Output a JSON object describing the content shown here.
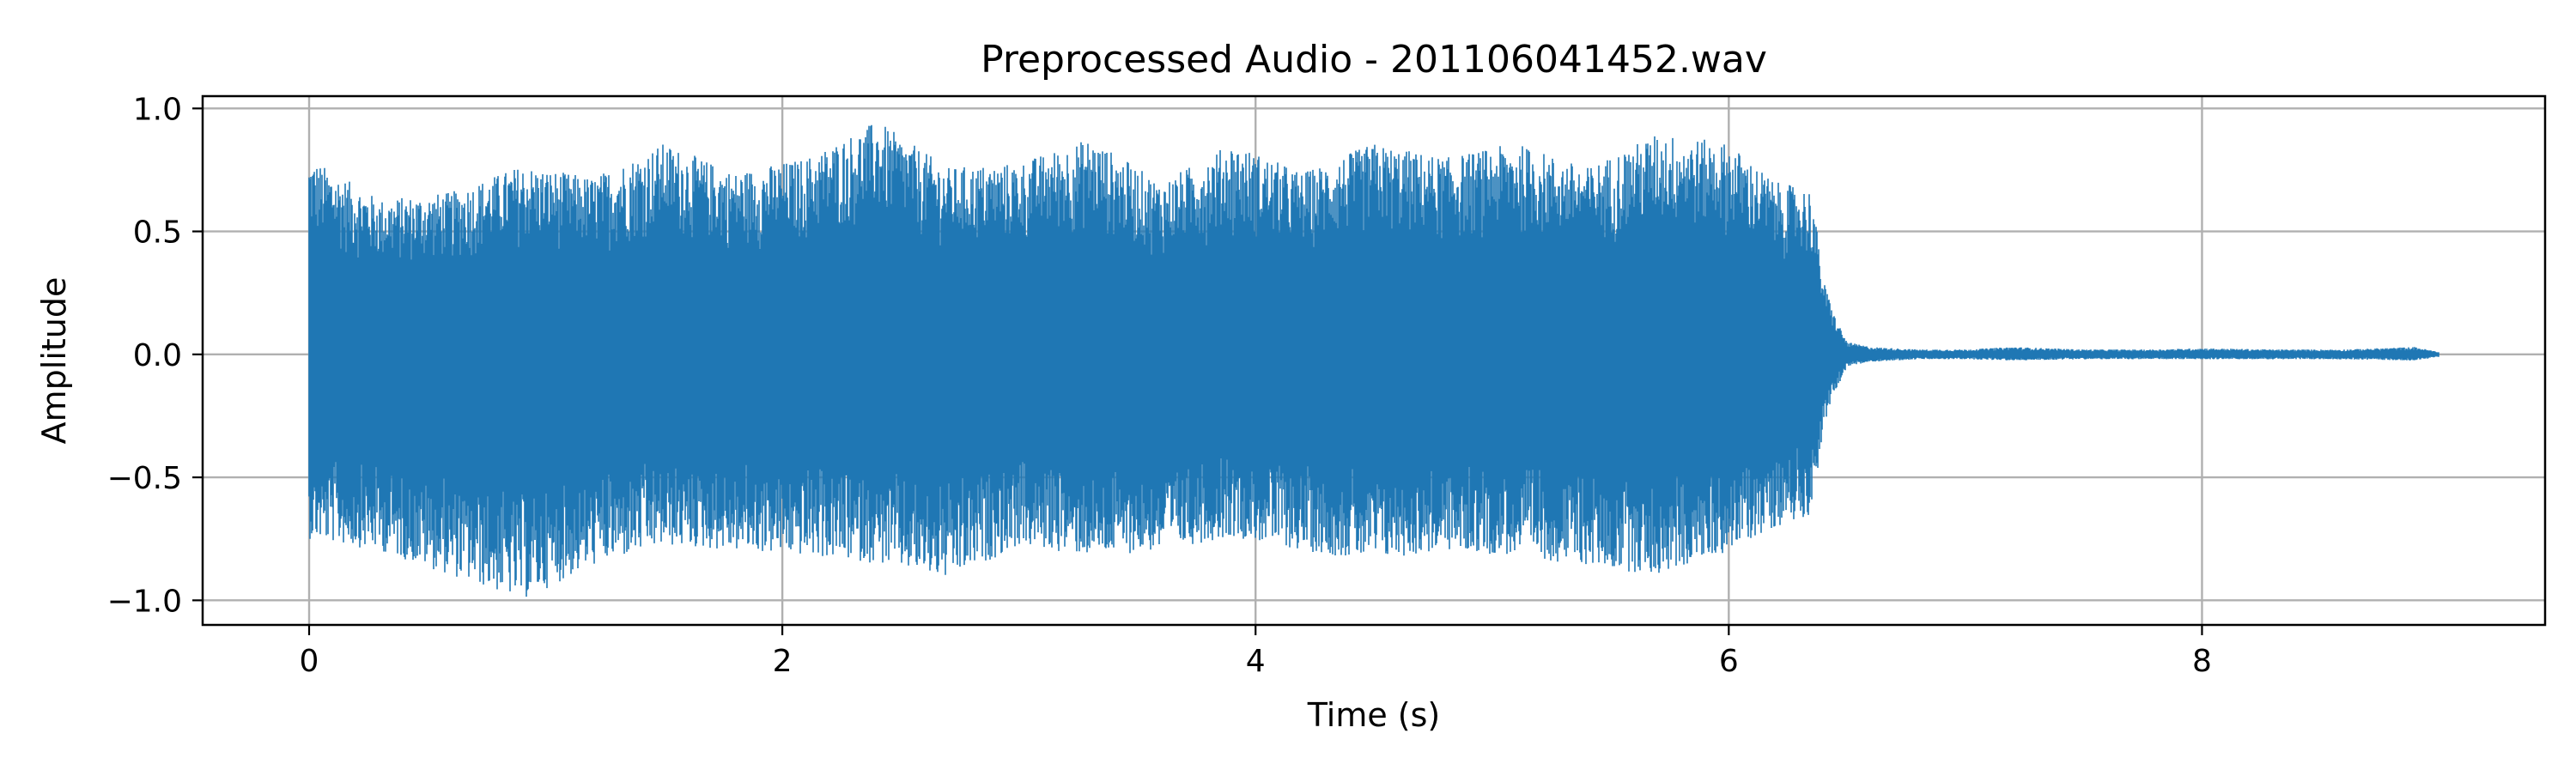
{
  "chart_data": {
    "type": "line",
    "title": "Preprocessed Audio - 201106041452.wav",
    "xlabel": "Time (s)",
    "ylabel": "Amplitude",
    "xlim": [
      -0.45,
      9.45
    ],
    "ylim": [
      -1.1,
      1.05
    ],
    "grid": true,
    "legend": "none",
    "line_color": "#1f77b4",
    "x_ticks": [
      {
        "value": 0,
        "label": "0"
      },
      {
        "value": 2,
        "label": "2"
      },
      {
        "value": 4,
        "label": "4"
      },
      {
        "value": 6,
        "label": "6"
      },
      {
        "value": 8,
        "label": "8"
      }
    ],
    "y_ticks": [
      {
        "value": 1.0,
        "label": "1.0"
      },
      {
        "value": 0.5,
        "label": "0.5"
      },
      {
        "value": 0.0,
        "label": "0.0"
      },
      {
        "value": -0.5,
        "label": "−0.5"
      },
      {
        "value": -1.0,
        "label": "−1.0"
      }
    ],
    "series": [
      {
        "x": [
          0.0,
          0.3,
          0.6,
          0.9,
          1.2,
          1.5,
          1.8,
          2.1,
          2.4,
          2.7,
          3.0,
          3.3,
          3.6,
          3.9,
          4.2,
          4.5,
          4.8,
          5.1,
          5.4,
          5.7,
          6.0,
          6.2,
          6.35,
          6.4,
          6.45,
          6.5,
          6.6,
          6.8,
          7.0,
          7.2,
          7.5,
          7.8,
          8.0,
          8.3,
          8.6,
          8.9,
          9.0
        ],
        "upper": [
          0.8,
          0.63,
          0.66,
          0.77,
          0.72,
          0.86,
          0.74,
          0.8,
          0.95,
          0.76,
          0.78,
          0.88,
          0.7,
          0.86,
          0.74,
          0.86,
          0.8,
          0.86,
          0.76,
          0.9,
          0.86,
          0.7,
          0.67,
          0.3,
          0.15,
          0.05,
          0.03,
          0.02,
          0.02,
          0.03,
          0.02,
          0.02,
          0.025,
          0.02,
          0.02,
          0.03,
          0.01
        ],
        "lower": [
          -0.75,
          -0.8,
          -0.9,
          -1.0,
          -0.86,
          -0.78,
          -0.8,
          -0.82,
          -0.85,
          -0.92,
          -0.78,
          -0.82,
          -0.8,
          -0.74,
          -0.8,
          -0.84,
          -0.8,
          -0.82,
          -0.86,
          -0.9,
          -0.8,
          -0.7,
          -0.65,
          -0.3,
          -0.15,
          -0.05,
          -0.03,
          -0.02,
          -0.02,
          -0.025,
          -0.02,
          -0.02,
          -0.02,
          -0.02,
          -0.02,
          -0.025,
          -0.01
        ]
      }
    ]
  }
}
